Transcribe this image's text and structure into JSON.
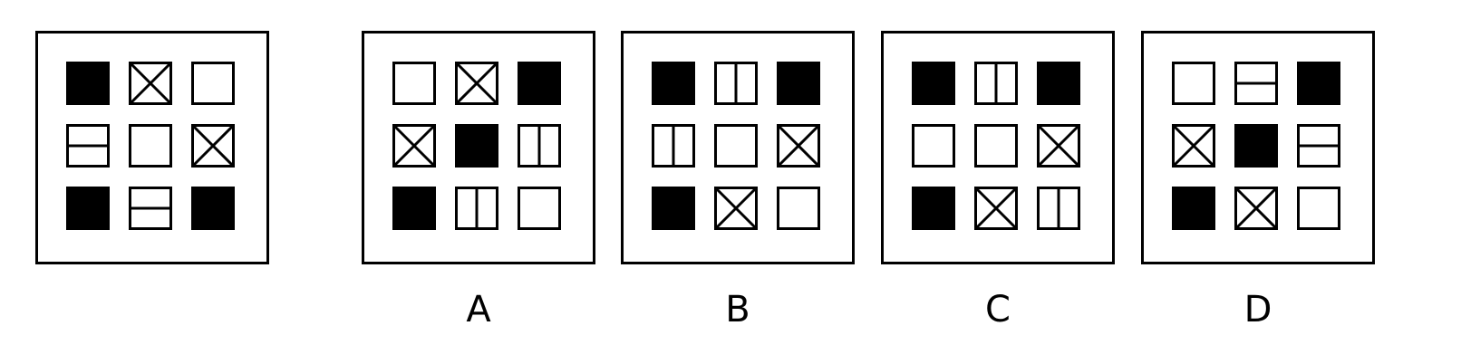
{
  "question": {
    "cells": [
      [
        "filled",
        "x-box",
        "empty"
      ],
      [
        "h-split",
        "empty",
        "x-box"
      ],
      [
        "filled",
        "h-split",
        "filled"
      ]
    ]
  },
  "options": [
    {
      "label": "A",
      "cells": [
        [
          "empty",
          "x-box",
          "filled"
        ],
        [
          "x-box",
          "filled",
          "v-split"
        ],
        [
          "filled",
          "v-split",
          "empty"
        ]
      ]
    },
    {
      "label": "B",
      "cells": [
        [
          "filled",
          "v-split",
          "filled"
        ],
        [
          "v-split",
          "empty",
          "x-box"
        ],
        [
          "filled",
          "x-box",
          "empty"
        ]
      ]
    },
    {
      "label": "C",
      "cells": [
        [
          "filled",
          "v-split",
          "filled"
        ],
        [
          "empty",
          "empty",
          "x-box"
        ],
        [
          "filled",
          "x-box",
          "v-split"
        ]
      ]
    },
    {
      "label": "D",
      "cells": [
        [
          "empty",
          "h-split",
          "filled"
        ],
        [
          "x-box",
          "filled",
          "h-split"
        ],
        [
          "filled",
          "x-box",
          "empty"
        ]
      ]
    }
  ]
}
